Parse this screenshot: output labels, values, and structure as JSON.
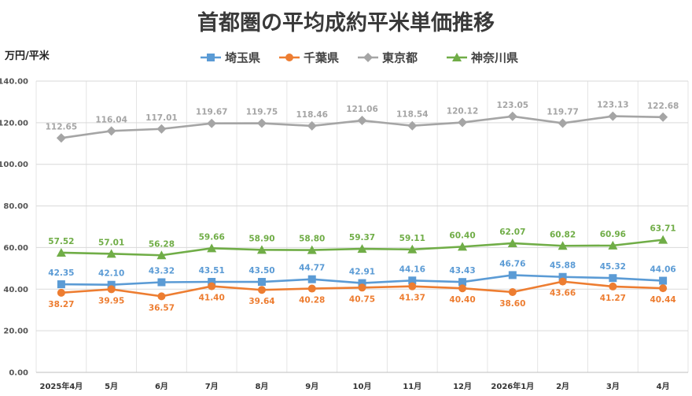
{
  "chart_data": {
    "type": "line",
    "title": "首都圏の平均成約平米単価推移",
    "ylabel": "万円/平米",
    "xlabel": "",
    "categories": [
      "2025年4月",
      "5月",
      "6月",
      "7月",
      "8月",
      "9月",
      "10月",
      "11月",
      "12月",
      "2026年1月",
      "2月",
      "3月",
      "4月"
    ],
    "ylim": [
      0,
      140
    ],
    "yticks": [
      "0.00",
      "20.00",
      "40.00",
      "60.00",
      "80.00",
      "100.00",
      "120.00",
      "140.00"
    ],
    "grid": true,
    "legend_position": "top",
    "series": [
      {
        "name": "埼玉県",
        "color": "#5b9bd5",
        "marker": "square",
        "label_position": "above",
        "values": [
          42.35,
          42.1,
          43.32,
          43.51,
          43.5,
          44.77,
          42.91,
          44.16,
          43.43,
          46.76,
          45.88,
          45.32,
          44.06
        ],
        "labels": [
          "42.35",
          "42.10",
          "43.32",
          "43.51",
          "43.50",
          "44.77",
          "42.91",
          "44.16",
          "43.43",
          "46.76",
          "45.88",
          "45.32",
          "44.06"
        ]
      },
      {
        "name": "千葉県",
        "color": "#ed7d31",
        "marker": "circle",
        "label_position": "below",
        "values": [
          38.27,
          39.95,
          36.57,
          41.4,
          39.64,
          40.28,
          40.75,
          41.37,
          40.4,
          38.6,
          43.66,
          41.27,
          40.44
        ],
        "labels": [
          "38.27",
          "39.95",
          "36.57",
          "41.40",
          "39.64",
          "40.28",
          "40.75",
          "41.37",
          "40.40",
          "38.60",
          "43.66",
          "41.27",
          "40.44"
        ]
      },
      {
        "name": "東京都",
        "color": "#a5a5a5",
        "marker": "diamond",
        "label_position": "above",
        "values": [
          112.65,
          116.04,
          117.01,
          119.67,
          119.75,
          118.46,
          121.06,
          118.54,
          120.12,
          123.05,
          119.77,
          123.13,
          122.68
        ],
        "labels": [
          "112.65",
          "116.04",
          "117.01",
          "119.67",
          "119.75",
          "118.46",
          "121.06",
          "118.54",
          "120.12",
          "123.05",
          "119.77",
          "123.13",
          "122.68"
        ]
      },
      {
        "name": "神奈川県",
        "color": "#70ad47",
        "marker": "triangle",
        "label_position": "above",
        "values": [
          57.52,
          57.01,
          56.28,
          59.66,
          58.9,
          58.8,
          59.37,
          59.11,
          60.4,
          62.07,
          60.82,
          60.96,
          63.71
        ],
        "labels": [
          "57.52",
          "57.01",
          "56.28",
          "59.66",
          "58.90",
          "58.80",
          "59.37",
          "59.11",
          "60.40",
          "62.07",
          "60.82",
          "60.96",
          "63.71"
        ]
      }
    ]
  }
}
